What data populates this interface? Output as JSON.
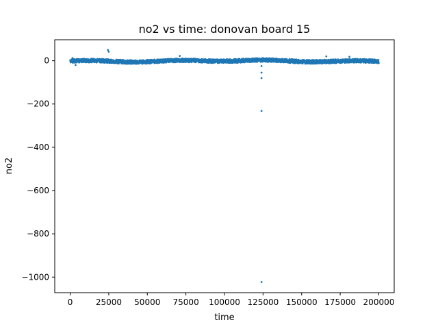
{
  "chart_data": {
    "type": "scatter",
    "title": "no2 vs time: donovan board 15",
    "xlabel": "time",
    "ylabel": "no2",
    "xlim": [
      -10000,
      210000
    ],
    "ylim": [
      -1072,
      97
    ],
    "xticks": [
      0,
      25000,
      50000,
      75000,
      100000,
      125000,
      150000,
      175000,
      200000
    ],
    "xtick_labels": [
      "0",
      "25000",
      "50000",
      "75000",
      "100000",
      "125000",
      "150000",
      "175000",
      "200000"
    ],
    "yticks": [
      0,
      -200,
      -400,
      -600,
      -800,
      -1000
    ],
    "ytick_labels": [
      "0",
      "−200",
      "−400",
      "−600",
      "−800",
      "−1000"
    ],
    "grid": false,
    "legend": "none",
    "series_color": "#1f77b4",
    "x_range_of_data": [
      0,
      200000
    ],
    "typical_band": [
      -10,
      8
    ],
    "notable_points": [
      {
        "x": 1500,
        "y": 12
      },
      {
        "x": 3500,
        "y": -20
      },
      {
        "x": 24500,
        "y": 50
      },
      {
        "x": 25000,
        "y": 42
      },
      {
        "x": 71000,
        "y": 22
      },
      {
        "x": 124000,
        "y": -25
      },
      {
        "x": 124000,
        "y": -55
      },
      {
        "x": 124000,
        "y": -80
      },
      {
        "x": 124000,
        "y": -232
      },
      {
        "x": 124000,
        "y": -1023
      },
      {
        "x": 166000,
        "y": 20
      },
      {
        "x": 181000,
        "y": 18
      }
    ]
  }
}
